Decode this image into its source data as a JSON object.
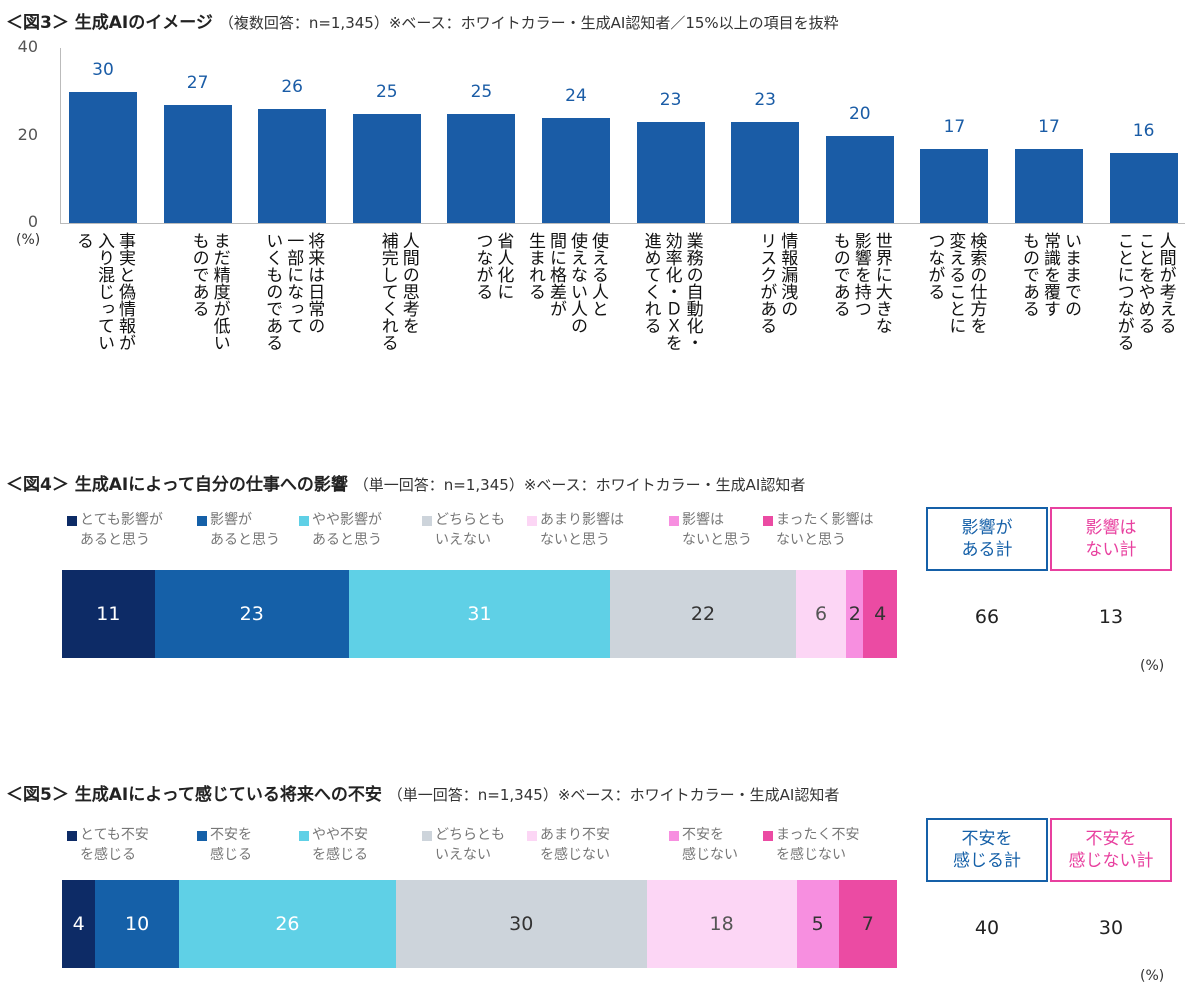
{
  "chart_data": [
    {
      "type": "bar",
      "title": "＜図3＞ 生成AIのイメージ",
      "subtitle": "（複数回答：n=1,345）※ベース：ホワイトカラー・生成AI認知者／15%以上の項目を抜粋",
      "ylabel": "(%)",
      "ylim": [
        0,
        40
      ],
      "yticks": [
        "0",
        "20",
        "40"
      ],
      "grid": false,
      "color": "#1a5ca6",
      "categories": [
        "事実と偽情報が\n入り混じってい\nる",
        "まだ精度が低い\nものである",
        "将来は日常の\n一部になって\nいくものである",
        "人間の思考を\n補完してくれる",
        "省人化に\nつながる",
        "使える人と\n使えない人の\n間に格差が\n生まれる",
        "業務の自動化・\n効率化・ＤＸを\n進めてくれる",
        "情報漏洩の\nリスクがある",
        "世界に大きな\n影響を持つ\nものである",
        "検索の仕方を\n変えることに\nつながる",
        "いままでの\n常識を覆す\nものである",
        "人間が考える\nことをやめる\nことにつながる"
      ],
      "values": [
        30,
        27,
        26,
        25,
        25,
        24,
        23,
        23,
        20,
        17,
        17,
        16
      ]
    },
    {
      "type": "bar",
      "stacked": true,
      "orientation": "horizontal",
      "title": "＜図4＞ 生成AIによって自分の仕事への影響",
      "subtitle": "（単一回答：n=1,345）※ベース：ホワイトカラー・生成AI認知者",
      "unit": "(%)",
      "series": [
        {
          "name": "とても影響が\nあると思う",
          "values": [
            11
          ],
          "color": "#0d2b66"
        },
        {
          "name": "影響が\nあると思う",
          "values": [
            23
          ],
          "color": "#1560a8"
        },
        {
          "name": "やや影響が\nあると思う",
          "values": [
            31
          ],
          "color": "#5fd0e6"
        },
        {
          "name": "どちらとも\nいえない",
          "values": [
            22
          ],
          "color": "#cdd4db"
        },
        {
          "name": "あまり影響は\nないと思う",
          "values": [
            6
          ],
          "color": "#fcd6f5"
        },
        {
          "name": "影響は\nないと思う",
          "values": [
            2
          ],
          "color": "#f78fe0"
        },
        {
          "name": "まったく影響は\nないと思う",
          "values": [
            4
          ],
          "color": "#eb4ba3"
        }
      ],
      "totals": [
        {
          "label": "影響が\nある計",
          "value": "66",
          "color": "#1560a8"
        },
        {
          "label": "影響は\nない計",
          "value": "13",
          "color": "#e8409f"
        }
      ]
    },
    {
      "type": "bar",
      "stacked": true,
      "orientation": "horizontal",
      "title": "＜図5＞ 生成AIによって感じている将来への不安",
      "subtitle": "（単一回答：n=1,345）※ベース：ホワイトカラー・生成AI認知者",
      "unit": "(%)",
      "series": [
        {
          "name": "とても不安\nを感じる",
          "values": [
            4
          ],
          "color": "#0d2b66"
        },
        {
          "name": "不安を\n感じる",
          "values": [
            10
          ],
          "color": "#1560a8"
        },
        {
          "name": "やや不安\nを感じる",
          "values": [
            26
          ],
          "color": "#5fd0e6"
        },
        {
          "name": "どちらとも\nいえない",
          "values": [
            30
          ],
          "color": "#cdd4db"
        },
        {
          "name": "あまり不安\nを感じない",
          "values": [
            18
          ],
          "color": "#fcd6f5"
        },
        {
          "name": "不安を\n感じない",
          "values": [
            5
          ],
          "color": "#f78fe0"
        },
        {
          "name": "まったく不安\nを感じない",
          "values": [
            7
          ],
          "color": "#eb4ba3"
        }
      ],
      "totals": [
        {
          "label": "不安を\n感じる計",
          "value": "40",
          "color": "#1560a8"
        },
        {
          "label": "不安を\n感じない計",
          "value": "30",
          "color": "#e8409f"
        }
      ]
    }
  ]
}
